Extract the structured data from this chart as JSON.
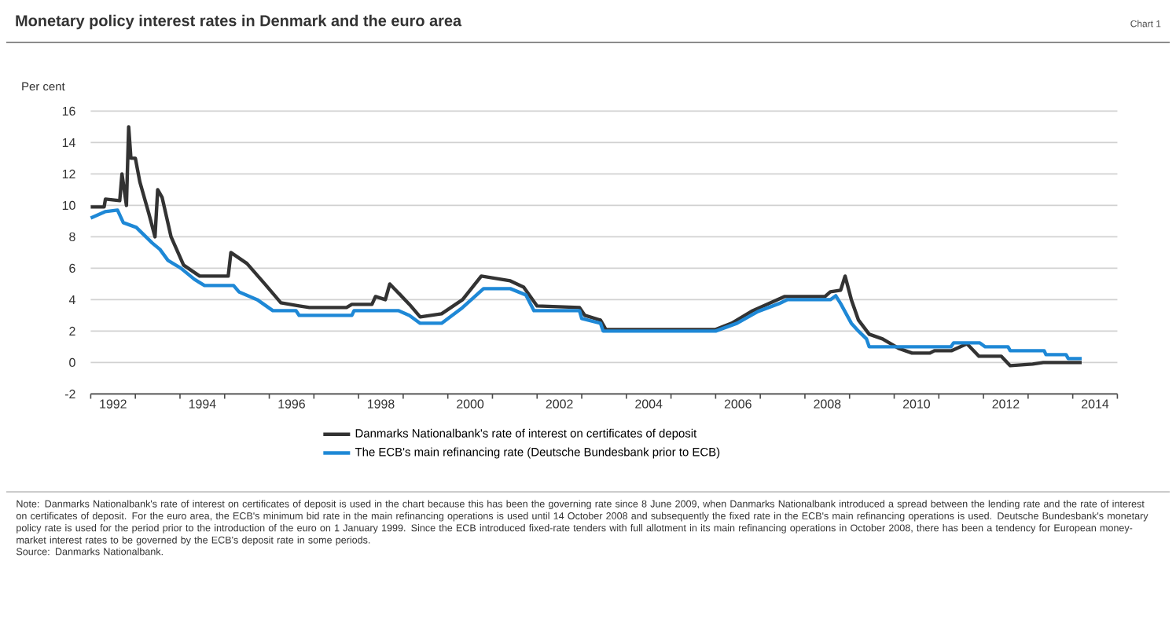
{
  "chart_data": {
    "type": "line",
    "title": "Monetary policy interest rates in Denmark and the euro area",
    "ylabel": "Per cent",
    "annotations": [
      "Chart 1",
      "Note:  Danmarks Nationalbank's rate of interest on certificates of deposit is used in the chart because this has been the governing rate since 8 June 2009, when Danmarks Nationalbank introduced a spread between the lending rate and the rate of interest on certificates of deposit. For the euro area, the ECB's minimum bid rate in the main refinancing operations is used until 14 October 2008 and subsequently the fixed rate in the ECB's main refinancing operations is used. Deutsche Bundesbank's monetary policy rate is used for the period prior to the introduction of the euro on 1 January 1999. Since the ECB introduced fixed-rate tenders with full allotment in its main refinancing operations in October 2008, there has been a tendency for European money-market interest rates to be governed by the ECB's deposit rate in some periods.",
      "Source:  Danmarks Nationalbank."
    ],
    "xlim": [
      1992,
      2015
    ],
    "ylim": [
      -2,
      16
    ],
    "yticks": [
      -2,
      0,
      2,
      4,
      6,
      8,
      10,
      12,
      14,
      16
    ],
    "xticks": [
      {
        "value": 1992,
        "label": null
      },
      {
        "value": 1993,
        "label": null
      },
      {
        "value": 1994,
        "label": null
      },
      {
        "value": 1995,
        "label": null
      },
      {
        "value": 1996,
        "label": null
      },
      {
        "value": 1997,
        "label": null
      },
      {
        "value": 1998,
        "label": null
      },
      {
        "value": 1999,
        "label": null
      },
      {
        "value": 2000,
        "label": null
      },
      {
        "value": 2001,
        "label": null
      },
      {
        "value": 2002,
        "label": null
      },
      {
        "value": 2003,
        "label": null
      },
      {
        "value": 2004,
        "label": null
      },
      {
        "value": 2005,
        "label": null
      },
      {
        "value": 2006,
        "label": null
      },
      {
        "value": 2007,
        "label": null
      },
      {
        "value": 2008,
        "label": null
      },
      {
        "value": 2009,
        "label": null
      },
      {
        "value": 2010,
        "label": null
      },
      {
        "value": 2011,
        "label": null
      },
      {
        "value": 2012,
        "label": null
      },
      {
        "value": 2013,
        "label": null
      },
      {
        "value": 2014,
        "label": null
      },
      {
        "value": 2015,
        "label": null
      },
      {
        "value": 1992.5,
        "label": "1992"
      },
      {
        "value": 1994.5,
        "label": "1994"
      },
      {
        "value": 1996.5,
        "label": "1996"
      },
      {
        "value": 1998.5,
        "label": "1998"
      },
      {
        "value": 2000.5,
        "label": "2000"
      },
      {
        "value": 2002.5,
        "label": "2002"
      },
      {
        "value": 2004.5,
        "label": "2004"
      },
      {
        "value": 2006.5,
        "label": "2006"
      },
      {
        "value": 2008.5,
        "label": "2008"
      },
      {
        "value": 2010.5,
        "label": "2010"
      },
      {
        "value": 2012.5,
        "label": "2012"
      },
      {
        "value": 2014.5,
        "label": "2014"
      }
    ],
    "grid": "y",
    "legend": "bottom",
    "marker": "none",
    "line_style": "solid",
    "series": [
      {
        "name": "Danmarks Nationalbank's rate of interest on certificates of deposit",
        "color": "#333333",
        "x": [
          1992.0,
          1992.3,
          1992.33,
          1992.65,
          1992.7,
          1992.8,
          1992.85,
          1992.9,
          1993.0,
          1993.1,
          1993.3,
          1993.44,
          1993.5,
          1993.6,
          1993.8,
          1994.08,
          1994.44,
          1995.08,
          1995.14,
          1995.5,
          1995.9,
          1996.26,
          1996.67,
          1996.9,
          1997.73,
          1997.85,
          1998.3,
          1998.38,
          1998.6,
          1998.7,
          1999.14,
          1999.38,
          1999.86,
          2000.33,
          2000.75,
          2001.4,
          2001.7,
          2002.0,
          2002.95,
          2003.07,
          2003.42,
          2003.54,
          2006.0,
          2006.36,
          2006.83,
          2007.54,
          2008.45,
          2008.57,
          2008.8,
          2008.9,
          2009.04,
          2009.2,
          2009.44,
          2009.74,
          2010.1,
          2010.4,
          2010.8,
          2010.9,
          2011.28,
          2011.63,
          2011.9,
          2012.4,
          2012.6,
          2013.1,
          2013.34,
          2014.2
        ],
        "values": [
          9.9,
          9.9,
          10.4,
          10.3,
          12.0,
          10.0,
          15.0,
          13.0,
          13.0,
          11.5,
          9.5,
          8.0,
          11.0,
          10.5,
          8.0,
          6.2,
          5.5,
          5.5,
          7.0,
          6.3,
          5.0,
          3.8,
          3.6,
          3.5,
          3.5,
          3.7,
          3.7,
          4.2,
          4.0,
          5.0,
          3.7,
          2.9,
          3.1,
          4.0,
          5.5,
          5.2,
          4.8,
          3.6,
          3.5,
          3.0,
          2.7,
          2.1,
          2.1,
          2.5,
          3.3,
          4.2,
          4.2,
          4.5,
          4.6,
          5.5,
          4.0,
          2.7,
          1.8,
          1.5,
          0.9,
          0.6,
          0.6,
          0.75,
          0.75,
          1.2,
          0.4,
          0.4,
          -0.2,
          -0.1,
          0.0,
          0.0
        ]
      },
      {
        "name": "The ECB's main refinancing rate (Deutsche Bundesbank prior to ECB)",
        "color": "#1e88d6",
        "x": [
          1992.0,
          1992.32,
          1992.6,
          1992.73,
          1993.02,
          1993.38,
          1993.55,
          1993.73,
          1994.02,
          1994.32,
          1994.55,
          1995.2,
          1995.32,
          1995.73,
          1996.08,
          1996.6,
          1996.67,
          1997.85,
          1997.9,
          1998.9,
          1999.14,
          1999.38,
          1999.86,
          2000.33,
          2000.8,
          2001.4,
          2001.75,
          2001.93,
          2002.95,
          2003.0,
          2003.42,
          2003.48,
          2006.0,
          2006.48,
          2006.95,
          2007.42,
          2007.6,
          2008.57,
          2008.69,
          2008.8,
          2009.04,
          2009.2,
          2009.38,
          2009.44,
          2011.27,
          2011.33,
          2011.92,
          2012.04,
          2012.55,
          2012.6,
          2013.36,
          2013.4,
          2013.85,
          2013.9,
          2014.2
        ],
        "values": [
          9.2,
          9.6,
          9.7,
          8.9,
          8.6,
          7.6,
          7.2,
          6.5,
          6.0,
          5.3,
          4.9,
          4.9,
          4.5,
          4.0,
          3.3,
          3.3,
          3.0,
          3.0,
          3.3,
          3.3,
          3.0,
          2.5,
          2.5,
          3.5,
          4.7,
          4.7,
          4.3,
          3.3,
          3.3,
          2.8,
          2.5,
          2.0,
          2.0,
          2.5,
          3.25,
          3.75,
          4.0,
          4.0,
          4.25,
          3.75,
          2.5,
          2.0,
          1.5,
          1.0,
          1.0,
          1.25,
          1.25,
          1.0,
          1.0,
          0.75,
          0.75,
          0.5,
          0.5,
          0.25,
          0.25
        ]
      }
    ]
  }
}
